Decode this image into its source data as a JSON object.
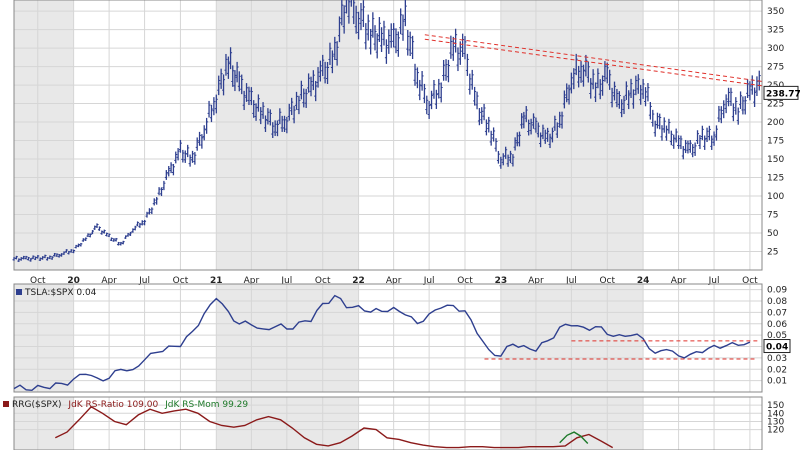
{
  "colors": {
    "page_bg": "#ffffff",
    "panel_band": "#e8e8e8",
    "grid": "#d6d6d6",
    "axis_text": "#222222",
    "price_bar": "#2e3f8f",
    "ratio_line": "#2e3f8f",
    "rs_ratio_line": "#8b1a1a",
    "rs_mom_line": "#1e7a2a",
    "trendline": "#e0302a",
    "label_box_border": "#222222"
  },
  "time_axis": {
    "start": "2019-08-01",
    "end": "2024-11-01",
    "year_start_labels": [
      "20",
      "21",
      "22",
      "23",
      "24"
    ],
    "ticks": [
      {
        "date": "2019-10-01",
        "label": "Oct",
        "bold": false
      },
      {
        "date": "2020-01-01",
        "label": "20",
        "bold": true
      },
      {
        "date": "2020-04-01",
        "label": "Apr",
        "bold": false
      },
      {
        "date": "2020-07-01",
        "label": "Jul",
        "bold": false
      },
      {
        "date": "2020-10-01",
        "label": "Oct",
        "bold": false
      },
      {
        "date": "2021-01-01",
        "label": "21",
        "bold": true
      },
      {
        "date": "2021-04-01",
        "label": "Apr",
        "bold": false
      },
      {
        "date": "2021-07-01",
        "label": "Jul",
        "bold": false
      },
      {
        "date": "2021-10-01",
        "label": "Oct",
        "bold": false
      },
      {
        "date": "2022-01-01",
        "label": "22",
        "bold": true
      },
      {
        "date": "2022-04-01",
        "label": "Apr",
        "bold": false
      },
      {
        "date": "2022-07-01",
        "label": "Jul",
        "bold": false
      },
      {
        "date": "2022-10-01",
        "label": "Oct",
        "bold": false
      },
      {
        "date": "2023-01-01",
        "label": "23",
        "bold": true
      },
      {
        "date": "2023-04-01",
        "label": "Apr",
        "bold": false
      },
      {
        "date": "2023-07-01",
        "label": "Jul",
        "bold": false
      },
      {
        "date": "2023-10-01",
        "label": "Oct",
        "bold": false
      },
      {
        "date": "2024-01-01",
        "label": "24",
        "bold": true
      },
      {
        "date": "2024-04-01",
        "label": "Apr",
        "bold": false
      },
      {
        "date": "2024-07-01",
        "label": "Jul",
        "bold": false
      },
      {
        "date": "2024-10-01",
        "label": "Oct",
        "bold": false
      }
    ]
  },
  "chart_data": [
    {
      "type": "ohlc",
      "title": "",
      "ylim": [
        0,
        365
      ],
      "yticks": [
        25,
        50,
        75,
        100,
        125,
        150,
        175,
        200,
        225,
        250,
        275,
        300,
        325,
        350
      ],
      "grid": true,
      "last_value_label": "238.77",
      "last_value": 238.77,
      "series": [
        {
          "x": [
            "2019-08-01",
            "2019-09-01",
            "2019-10-01",
            "2019-11-01",
            "2019-12-01",
            "2020-01-01",
            "2020-02-01",
            "2020-03-01",
            "2020-04-01",
            "2020-05-01",
            "2020-06-01",
            "2020-07-01",
            "2020-08-01",
            "2020-09-01",
            "2020-10-01",
            "2020-11-01",
            "2020-12-01",
            "2021-01-01",
            "2021-02-01",
            "2021-03-01",
            "2021-04-01",
            "2021-05-01",
            "2021-06-01",
            "2021-07-01",
            "2021-08-01",
            "2021-09-01",
            "2021-10-01",
            "2021-11-01",
            "2021-12-01",
            "2022-01-01",
            "2022-02-01",
            "2022-03-01",
            "2022-04-01",
            "2022-05-01",
            "2022-06-01",
            "2022-07-01",
            "2022-08-01",
            "2022-09-01",
            "2022-10-01",
            "2022-11-01",
            "2022-12-01",
            "2023-01-01",
            "2023-02-01",
            "2023-03-01",
            "2023-04-01",
            "2023-05-01",
            "2023-06-01",
            "2023-07-01",
            "2023-08-01",
            "2023-09-01",
            "2023-10-01",
            "2023-11-01",
            "2023-12-01",
            "2024-01-01",
            "2024-02-01",
            "2024-03-01",
            "2024-04-01",
            "2024-05-01",
            "2024-06-01",
            "2024-07-01",
            "2024-08-01",
            "2024-09-01",
            "2024-10-01"
          ],
          "values": [
            15,
            16,
            17,
            22,
            27,
            42,
            58,
            45,
            35,
            55,
            67,
            95,
            130,
            160,
            150,
            190,
            235,
            280,
            250,
            225,
            210,
            195,
            205,
            230,
            245,
            265,
            290,
            370,
            345,
            320,
            310,
            305,
            335,
            260,
            225,
            250,
            300,
            290,
            220,
            195,
            150,
            155,
            205,
            190,
            175,
            200,
            260,
            275,
            245,
            260,
            220,
            240,
            250,
            200,
            190,
            170,
            160,
            180,
            180,
            235,
            215,
            240,
            250
          ]
        }
      ],
      "trendlines": [
        {
          "x": [
            "2022-06-20",
            "2024-11-01"
          ],
          "y": [
            318,
            255
          ]
        },
        {
          "x": [
            "2022-06-20",
            "2024-11-01"
          ],
          "y": [
            312,
            249
          ]
        }
      ]
    },
    {
      "type": "line",
      "legend": "TSLA:$SPX 0.04",
      "ylim": [
        0,
        0.095
      ],
      "yticks": [
        0.01,
        0.02,
        0.03,
        0.04,
        0.05,
        0.06,
        0.07,
        0.08,
        0.09
      ],
      "ytick_labels": [
        "0.01",
        "0.02",
        "0.03",
        "0.04",
        "0.05",
        "0.06",
        "0.07",
        "0.08",
        "0.09"
      ],
      "grid": true,
      "last_value_label": "0.04",
      "last_value": 0.04,
      "series": [
        {
          "x": [
            "2019-08-01",
            "2019-09-01",
            "2019-10-01",
            "2019-11-01",
            "2019-12-01",
            "2020-01-01",
            "2020-02-01",
            "2020-03-01",
            "2020-04-01",
            "2020-05-01",
            "2020-06-01",
            "2020-07-01",
            "2020-08-01",
            "2020-09-01",
            "2020-10-01",
            "2020-11-01",
            "2020-12-01",
            "2021-01-01",
            "2021-02-01",
            "2021-03-01",
            "2021-04-01",
            "2021-05-01",
            "2021-06-01",
            "2021-07-01",
            "2021-08-01",
            "2021-09-01",
            "2021-10-01",
            "2021-11-01",
            "2021-12-01",
            "2022-01-01",
            "2022-02-01",
            "2022-03-01",
            "2022-04-01",
            "2022-05-01",
            "2022-06-01",
            "2022-07-01",
            "2022-08-01",
            "2022-09-01",
            "2022-10-01",
            "2022-11-01",
            "2022-12-01",
            "2023-01-01",
            "2023-02-01",
            "2023-03-01",
            "2023-04-01",
            "2023-05-01",
            "2023-06-01",
            "2023-07-01",
            "2023-08-01",
            "2023-09-01",
            "2023-10-01",
            "2023-11-01",
            "2023-12-01",
            "2024-01-01",
            "2024-02-01",
            "2024-03-01",
            "2024-04-01",
            "2024-05-01",
            "2024-06-01",
            "2024-07-01",
            "2024-08-01",
            "2024-09-01",
            "2024-10-01"
          ],
          "values": [
            0.003,
            0.003,
            0.004,
            0.005,
            0.006,
            0.012,
            0.016,
            0.011,
            0.014,
            0.018,
            0.021,
            0.028,
            0.034,
            0.042,
            0.038,
            0.055,
            0.068,
            0.082,
            0.072,
            0.058,
            0.061,
            0.054,
            0.058,
            0.056,
            0.06,
            0.064,
            0.076,
            0.086,
            0.074,
            0.075,
            0.072,
            0.069,
            0.076,
            0.067,
            0.06,
            0.07,
            0.072,
            0.078,
            0.07,
            0.052,
            0.038,
            0.03,
            0.044,
            0.039,
            0.037,
            0.045,
            0.056,
            0.06,
            0.055,
            0.059,
            0.05,
            0.05,
            0.051,
            0.045,
            0.036,
            0.036,
            0.032,
            0.034,
            0.033,
            0.043,
            0.039,
            0.042,
            0.044
          ]
        }
      ],
      "trendlines": [
        {
          "x": [
            "2023-07-01",
            "2024-10-20"
          ],
          "y": [
            0.045,
            0.045
          ]
        },
        {
          "x": [
            "2022-11-20",
            "2024-10-20"
          ],
          "y": [
            0.029,
            0.029
          ]
        }
      ]
    },
    {
      "type": "line",
      "legend": {
        "prefix": "RRG($SPX)",
        "series_labels": [
          "JdK RS-Ratio 109.00",
          "JdK RS-Mom 99.29"
        ]
      },
      "ylim": [
        95,
        160
      ],
      "yticks": [
        120,
        130,
        140,
        150
      ],
      "grid": true,
      "series": [
        {
          "name": "JdK RS-Ratio",
          "x": [
            "2019-11-15",
            "2019-12-15",
            "2020-01-15",
            "2020-02-15",
            "2020-03-15",
            "2020-04-15",
            "2020-05-15",
            "2020-06-15",
            "2020-07-15",
            "2020-08-15",
            "2020-09-15",
            "2020-10-15",
            "2020-11-15",
            "2020-12-15",
            "2021-01-15",
            "2021-02-15",
            "2021-03-15",
            "2021-04-15",
            "2021-05-15",
            "2021-06-15",
            "2021-07-15",
            "2021-08-15",
            "2021-09-15",
            "2021-10-15",
            "2021-11-15",
            "2021-12-15",
            "2022-01-15",
            "2022-02-15",
            "2022-03-15",
            "2022-04-15",
            "2022-05-15",
            "2022-06-15",
            "2022-07-15",
            "2022-08-15",
            "2022-09-15",
            "2022-10-15",
            "2022-11-15",
            "2022-12-15",
            "2023-01-15",
            "2023-02-15",
            "2023-03-15",
            "2023-04-15",
            "2023-05-15",
            "2023-06-15",
            "2023-07-15",
            "2023-08-15",
            "2023-09-15",
            "2023-10-15"
          ],
          "values": [
            110,
            117,
            132,
            148,
            140,
            130,
            126,
            138,
            145,
            140,
            143,
            145,
            140,
            130,
            125,
            123,
            125,
            132,
            136,
            132,
            122,
            110,
            102,
            100,
            104,
            112,
            122,
            120,
            110,
            108,
            104,
            101,
            99,
            98,
            98,
            99,
            99,
            98,
            98,
            98,
            99,
            99,
            99,
            100,
            110,
            114,
            106,
            98
          ]
        },
        {
          "name": "JdK RS-Mom",
          "x": [
            "2023-06-01",
            "2023-06-20",
            "2023-07-08",
            "2023-07-25",
            "2023-08-12"
          ],
          "values": [
            104,
            113,
            117,
            112,
            103
          ]
        }
      ]
    }
  ]
}
